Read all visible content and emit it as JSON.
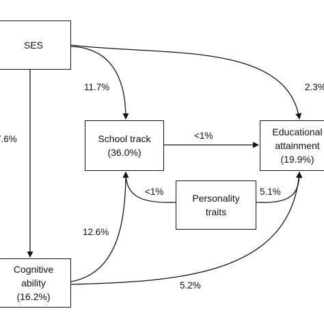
{
  "nodes": {
    "ses": {
      "line1": "SES",
      "line2": "",
      "line3": ""
    },
    "school_track": {
      "line1": "School track",
      "line2": "(36.0%)",
      "line3": ""
    },
    "educational_attainment": {
      "line1": "Educational",
      "line2": "attainment",
      "line3": "(19.9%)"
    },
    "personality_traits": {
      "line1": "Personality",
      "line2": "traits",
      "line3": ""
    },
    "cognitive_ability": {
      "line1": "Cognitive",
      "line2": "ability",
      "line3": "(16.2%)"
    }
  },
  "edges": {
    "ses_to_school_track": "11.7%",
    "ses_to_educational_attainment": "2.3%",
    "ses_to_cognitive_ability": "7.6%",
    "school_track_to_educational_attainment": "<1%",
    "personality_traits_to_school_track": "<1%",
    "personality_traits_to_educational_attainment": "5.1%",
    "cognitive_ability_to_school_track": "12.6%",
    "cognitive_ability_to_educational_attainment": "5.2%"
  },
  "colors": {
    "line": "#111111",
    "box_border": "#111111",
    "background": "#ffffff"
  }
}
